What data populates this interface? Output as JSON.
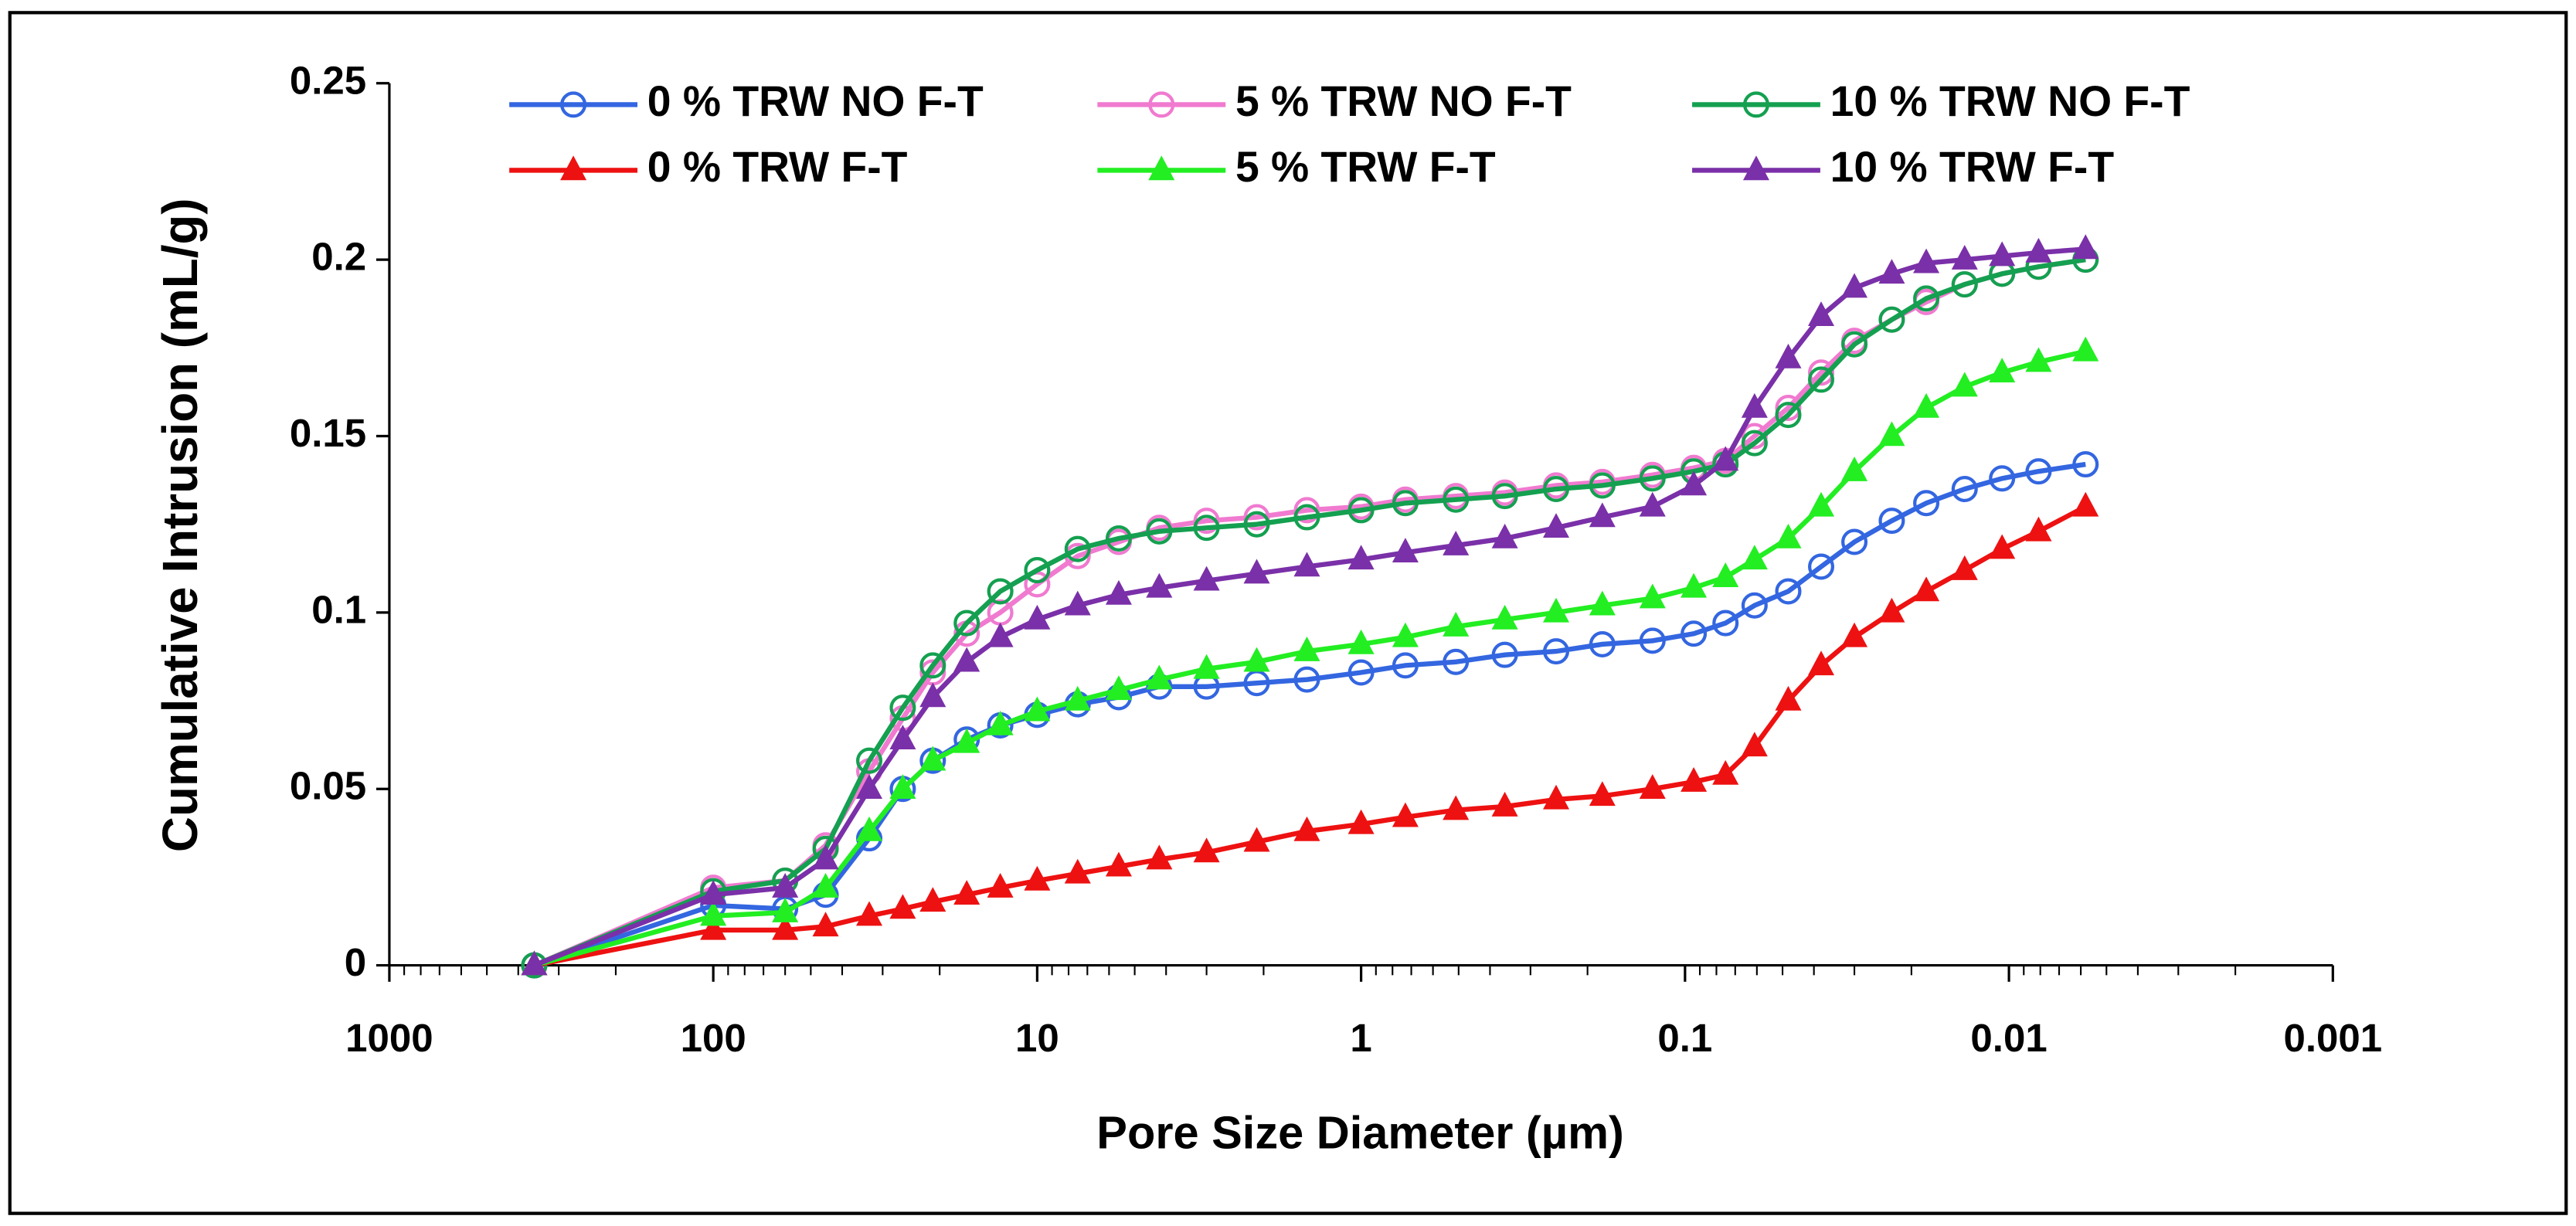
{
  "chart_data": {
    "type": "line",
    "xlabel": "Pore Size Diameter (µm)",
    "ylabel": "Cumulative Intrusion (mL/g)",
    "x": [
      357,
      100,
      60,
      45,
      33,
      26,
      21,
      16.5,
      13,
      10,
      7.5,
      5.6,
      4.2,
      3,
      2.1,
      1.47,
      1,
      0.73,
      0.51,
      0.36,
      0.25,
      0.18,
      0.126,
      0.094,
      0.075,
      0.061,
      0.048,
      0.038,
      0.03,
      0.023,
      0.018,
      0.0137,
      0.0105,
      0.0081,
      0.0058
    ],
    "xlim": [
      1000,
      0.001
    ],
    "xticks": [
      1000,
      100,
      10,
      1,
      0.1,
      0.01,
      0.001
    ],
    "xscale": "log",
    "ylim": [
      0,
      0.25
    ],
    "yticks": [
      0,
      0.05,
      0.1,
      0.15,
      0.2,
      0.25
    ],
    "legend": "top",
    "series": [
      {
        "name": "0 % TRW NO F-T",
        "color": "#3366e0",
        "marker": "circle",
        "values": [
          0,
          0.017,
          0.016,
          0.02,
          0.036,
          0.05,
          0.058,
          0.064,
          0.068,
          0.071,
          0.074,
          0.076,
          0.079,
          0.079,
          0.08,
          0.081,
          0.083,
          0.085,
          0.086,
          0.088,
          0.089,
          0.091,
          0.092,
          0.094,
          0.097,
          0.102,
          0.106,
          0.113,
          0.12,
          0.126,
          0.131,
          0.135,
          0.138,
          0.14,
          0.142
        ]
      },
      {
        "name": "5 % TRW NO F-T",
        "color": "#f07ad0",
        "marker": "circle",
        "values": [
          0,
          0.022,
          0.024,
          0.034,
          0.055,
          0.07,
          0.083,
          0.094,
          0.1,
          0.108,
          0.116,
          0.12,
          0.124,
          0.126,
          0.127,
          0.129,
          0.13,
          0.132,
          0.133,
          0.134,
          0.136,
          0.137,
          0.139,
          0.141,
          0.143,
          0.15,
          0.158,
          0.168,
          0.177,
          0.183,
          0.188,
          0.193,
          0.196,
          0.198,
          0.2
        ]
      },
      {
        "name": "10 % TRW NO F-T",
        "color": "#14a050",
        "marker": "circle",
        "values": [
          0,
          0.021,
          0.024,
          0.033,
          0.058,
          0.073,
          0.085,
          0.097,
          0.106,
          0.112,
          0.118,
          0.121,
          0.123,
          0.124,
          0.125,
          0.127,
          0.129,
          0.131,
          0.132,
          0.133,
          0.135,
          0.136,
          0.138,
          0.14,
          0.142,
          0.148,
          0.156,
          0.166,
          0.176,
          0.183,
          0.189,
          0.193,
          0.196,
          0.198,
          0.2
        ]
      },
      {
        "name": "0 % TRW F-T",
        "color": "#ee1111",
        "marker": "triangle",
        "values": [
          0,
          0.01,
          0.01,
          0.011,
          0.014,
          0.016,
          0.018,
          0.02,
          0.022,
          0.024,
          0.026,
          0.028,
          0.03,
          0.032,
          0.035,
          0.038,
          0.04,
          0.042,
          0.044,
          0.045,
          0.047,
          0.048,
          0.05,
          0.052,
          0.054,
          0.062,
          0.075,
          0.085,
          0.093,
          0.1,
          0.106,
          0.112,
          0.118,
          0.123,
          0.13
        ]
      },
      {
        "name": "5 % TRW F-T",
        "color": "#22ee22",
        "marker": "triangle",
        "values": [
          0,
          0.014,
          0.015,
          0.022,
          0.038,
          0.05,
          0.058,
          0.063,
          0.068,
          0.072,
          0.075,
          0.078,
          0.081,
          0.084,
          0.086,
          0.089,
          0.091,
          0.093,
          0.096,
          0.098,
          0.1,
          0.102,
          0.104,
          0.107,
          0.11,
          0.115,
          0.121,
          0.13,
          0.14,
          0.15,
          0.158,
          0.164,
          0.168,
          0.171,
          0.174
        ]
      },
      {
        "name": "10 % TRW F-T",
        "color": "#7a30a8",
        "marker": "triangle",
        "values": [
          0,
          0.02,
          0.022,
          0.03,
          0.05,
          0.064,
          0.076,
          0.086,
          0.093,
          0.098,
          0.102,
          0.105,
          0.107,
          0.109,
          0.111,
          0.113,
          0.115,
          0.117,
          0.119,
          0.121,
          0.124,
          0.127,
          0.13,
          0.136,
          0.143,
          0.158,
          0.172,
          0.184,
          0.192,
          0.196,
          0.199,
          0.2,
          0.201,
          0.202,
          0.203
        ]
      }
    ]
  }
}
